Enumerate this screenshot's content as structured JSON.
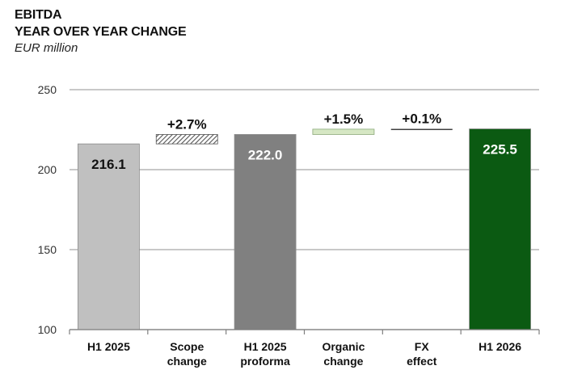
{
  "header": {
    "title_line1": "EBITDA",
    "title_line2": "YEAR OVER YEAR CHANGE",
    "subtitle": "EUR million"
  },
  "colors": {
    "base": "#c0c0c0",
    "proforma": "#808080",
    "final": "#0b5a12",
    "organic": "#d6e7c4",
    "scope_hatch": "#555555",
    "grid": "#a6a6a6"
  },
  "chart_data": {
    "type": "bar",
    "subtype": "waterfall",
    "title": "EBITDA YEAR OVER YEAR CHANGE",
    "ylabel": "EUR million",
    "ylim": [
      100,
      250
    ],
    "yticks": [
      100,
      150,
      200,
      250
    ],
    "grid": true,
    "categories": [
      [
        "H1 2025"
      ],
      [
        "Scope",
        "change"
      ],
      [
        "H1 2025",
        "proforma"
      ],
      [
        "Organic",
        "change"
      ],
      [
        "FX",
        "effect"
      ],
      [
        "H1 2026"
      ]
    ],
    "bars": [
      {
        "kind": "total",
        "value": 216.1,
        "label": "216.1",
        "color": "#c0c0c0"
      },
      {
        "kind": "delta",
        "from": 216.1,
        "to": 222.0,
        "label": "+2.7%",
        "fill": "hatch"
      },
      {
        "kind": "total",
        "value": 222.0,
        "label": "222.0",
        "color": "#808080"
      },
      {
        "kind": "delta",
        "from": 222.0,
        "to": 225.3,
        "label": "+1.5%",
        "color": "#d6e7c4"
      },
      {
        "kind": "delta",
        "from": 225.3,
        "to": 225.5,
        "label": "+0.1%",
        "color": "#404040"
      },
      {
        "kind": "total",
        "value": 225.5,
        "label": "225.5",
        "color": "#0b5a12"
      }
    ]
  }
}
